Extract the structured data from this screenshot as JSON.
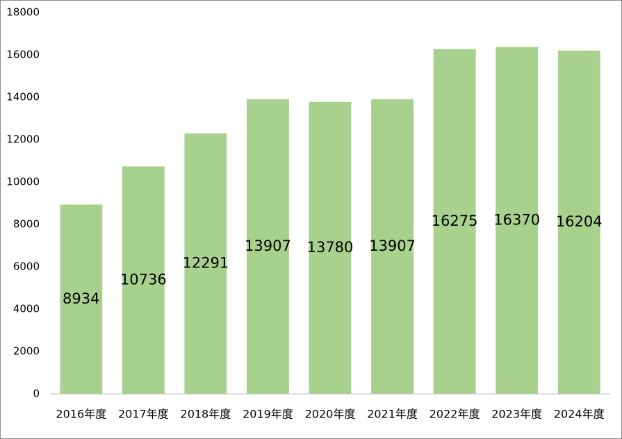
{
  "chart_data": {
    "type": "bar",
    "categories": [
      "2016年度",
      "2017年度",
      "2018年度",
      "2019年度",
      "2020年度",
      "2021年度",
      "2022年度",
      "2023年度",
      "2024年度"
    ],
    "values": [
      8934,
      10736,
      12291,
      13907,
      13780,
      13907,
      16275,
      16370,
      16204
    ],
    "color": "#a9d18e",
    "ylim": [
      0,
      18000
    ],
    "yticks": [
      0,
      2000,
      4000,
      6000,
      8000,
      10000,
      12000,
      14000,
      16000,
      18000
    ],
    "grid": false
  }
}
